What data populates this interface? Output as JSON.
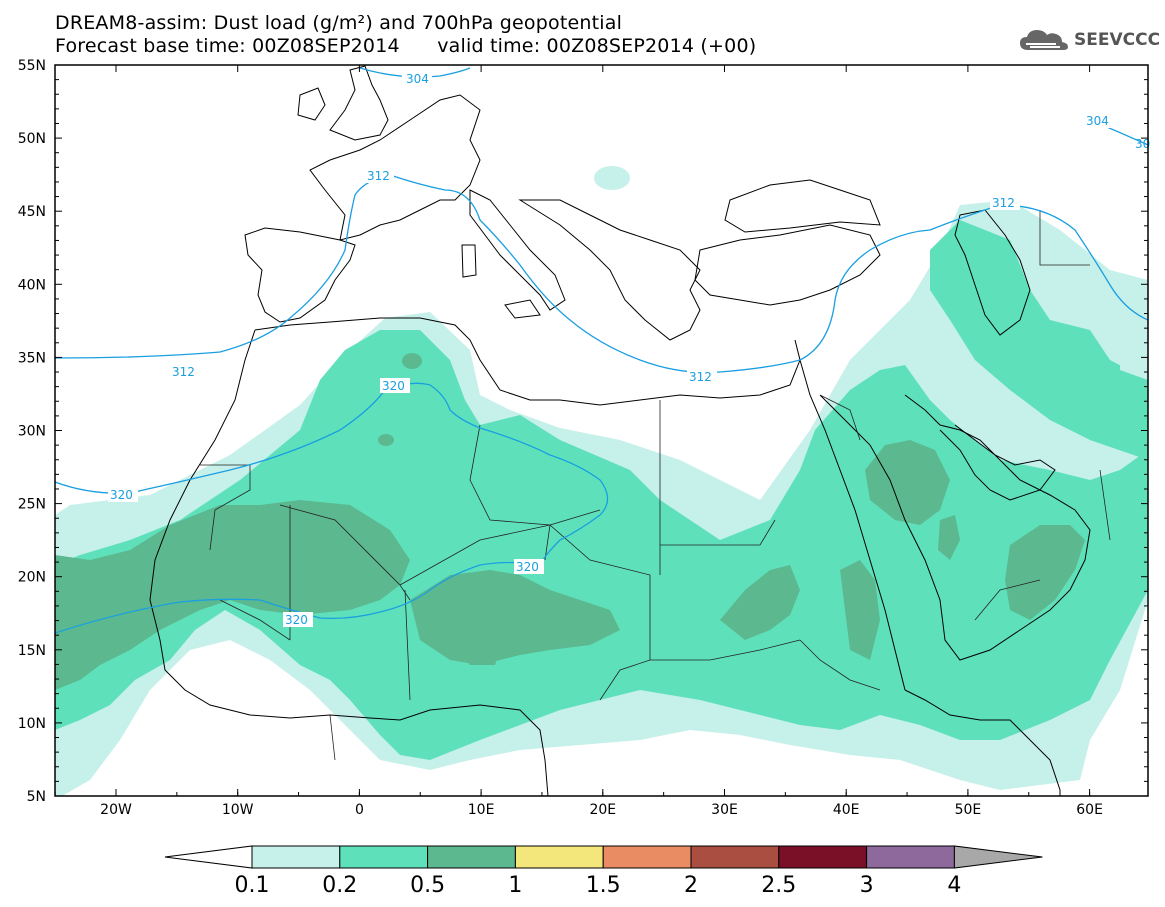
{
  "title": {
    "line1": "DREAM8-assim: Dust load (g/m²) and 700hPa geopotential",
    "line2": "Forecast base time: 00Z08SEP2014      valid time: 00Z08SEP2014 (+00)"
  },
  "logo": {
    "icon": "cloud-icon",
    "text": "SEEVCCC"
  },
  "axes": {
    "lat_labels": [
      "55N",
      "50N",
      "45N",
      "40N",
      "35N",
      "30N",
      "25N",
      "20N",
      "15N",
      "10N",
      "5N"
    ],
    "lon_labels": [
      "20W",
      "10W",
      "0",
      "10E",
      "20E",
      "30E",
      "40E",
      "50E",
      "60E"
    ]
  },
  "contour_labels": {
    "c304a": "304",
    "c304b": "304",
    "c30x": "30",
    "c312a": "312",
    "c312b": "312",
    "c312c": "312",
    "c312d": "312",
    "c320a": "320",
    "c320b": "320",
    "c320c": "320",
    "c320d": "320"
  },
  "colorbar": {
    "levels": [
      "0.1",
      "0.2",
      "0.5",
      "1",
      "1.5",
      "2",
      "2.5",
      "3",
      "4"
    ],
    "colors": [
      "#c6f0ea",
      "#5ee1bb",
      "#5cb88f",
      "#f3e67a",
      "#e98b63",
      "#a94e41",
      "#7a0f28",
      "#8d6a9b",
      "#a8a8a8"
    ]
  },
  "colors": {
    "dust_01": "#c6f0ea",
    "dust_02": "#5ee1bb",
    "dust_05": "#5cb88f",
    "contour": "#1a9fe0",
    "coast": "#000000"
  }
}
